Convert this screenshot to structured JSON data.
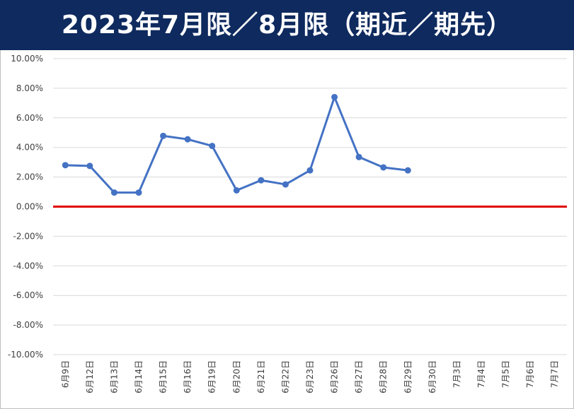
{
  "title": "2023年7月限／8月限（期近／期先）",
  "chart_data": {
    "type": "line",
    "title": "2023年7月限／8月限（期近／期先）",
    "categories": [
      "6月9日",
      "6月12日",
      "6月13日",
      "6月14日",
      "6月15日",
      "6月16日",
      "6月19日",
      "6月20日",
      "6月21日",
      "6月22日",
      "6月23日",
      "6月26日",
      "6月27日",
      "6月28日",
      "6月29日",
      "6月30日",
      "7月3日",
      "7月4日",
      "7月5日",
      "7月6日",
      "7月7日"
    ],
    "series": [
      {
        "values": [
          2.8,
          2.75,
          0.95,
          0.95,
          4.78,
          4.55,
          4.1,
          1.1,
          1.78,
          1.5,
          2.45,
          7.4,
          3.35,
          2.65,
          2.45,
          null,
          null,
          null,
          null,
          null,
          null
        ]
      }
    ],
    "ylim": [
      -10,
      10
    ],
    "yticks": [
      "10.00%",
      "8.00%",
      "6.00%",
      "4.00%",
      "2.00%",
      "0.00%",
      "-2.00%",
      "-4.00%",
      "-6.00%",
      "-8.00%",
      "-10.00%"
    ],
    "ytick_values": [
      10,
      8,
      6,
      4,
      2,
      0,
      -2,
      -4,
      -6,
      -8,
      -10
    ],
    "grid": true,
    "colors": {
      "series": "#4472c4",
      "zero_line": "#e00000",
      "grid": "#d9d9d9",
      "title_bg": "#0e2a5e"
    }
  }
}
